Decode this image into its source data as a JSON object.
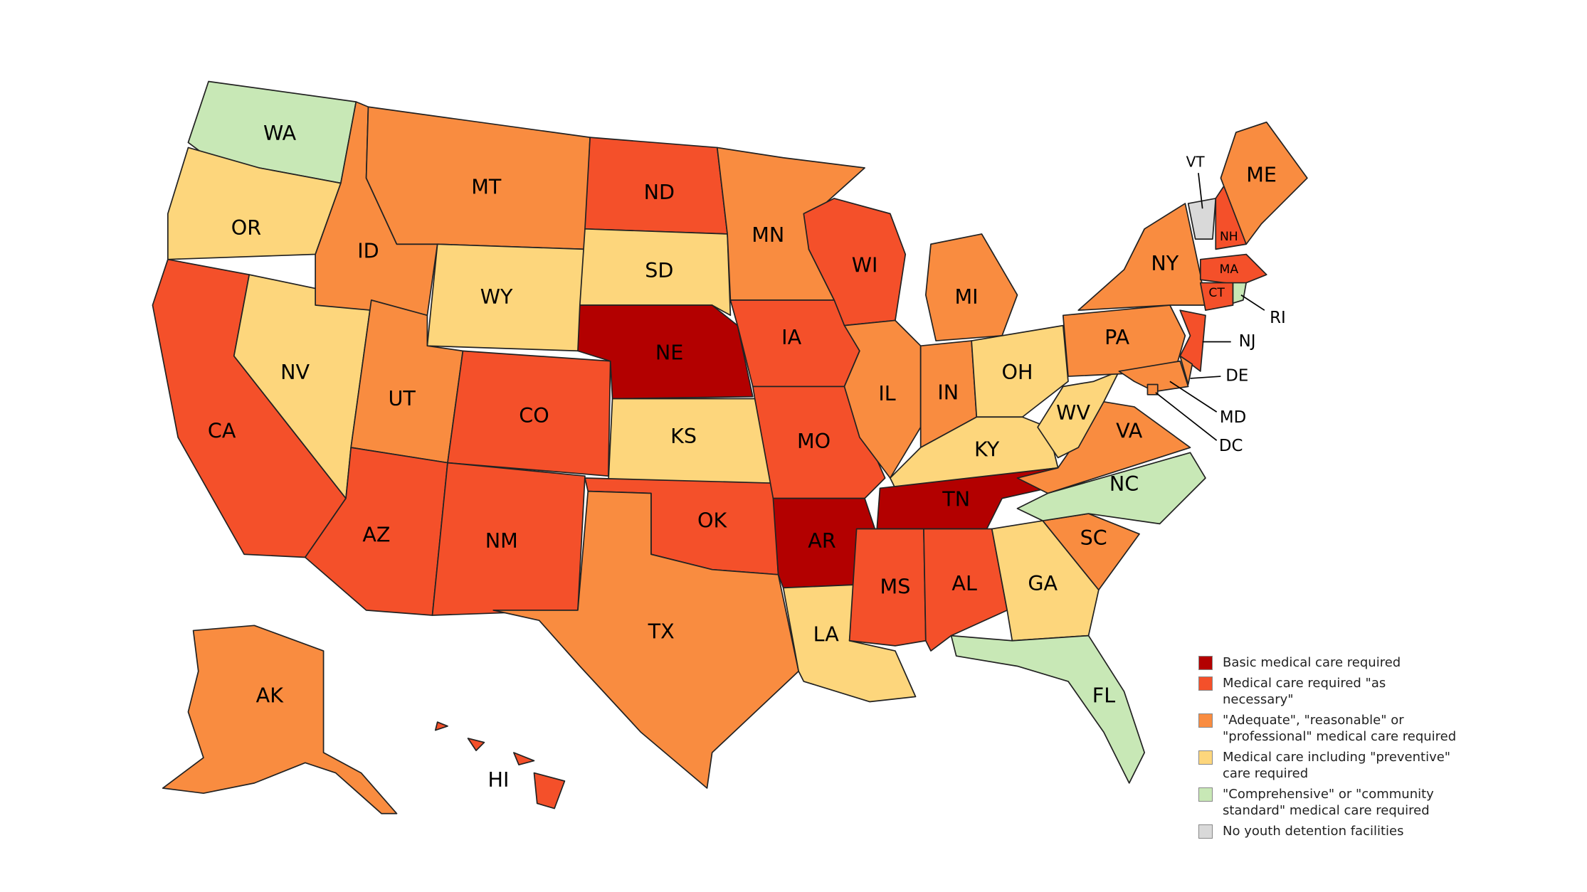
{
  "states": [
    {
      "label": "WA",
      "color": "#c8e8b6"
    },
    {
      "label": "OR",
      "color": "#fdd67c"
    },
    {
      "label": "CA",
      "color": "#f4502a"
    },
    {
      "label": "NV",
      "color": "#fdd67c"
    },
    {
      "label": "ID",
      "color": "#f98c40"
    },
    {
      "label": "MT",
      "color": "#f98c40"
    },
    {
      "label": "WY",
      "color": "#fdd67c"
    },
    {
      "label": "UT",
      "color": "#f98c40"
    },
    {
      "label": "CO",
      "color": "#f4502a"
    },
    {
      "label": "AZ",
      "color": "#f4502a"
    },
    {
      "label": "NM",
      "color": "#f4502a"
    },
    {
      "label": "ND",
      "color": "#f4502a"
    },
    {
      "label": "SD",
      "color": "#fdd67c"
    },
    {
      "label": "NE",
      "color": "#b30000"
    },
    {
      "label": "KS",
      "color": "#fdd67c"
    },
    {
      "label": "OK",
      "color": "#f4502a"
    },
    {
      "label": "TX",
      "color": "#f98c40"
    },
    {
      "label": "MN",
      "color": "#f98c40"
    },
    {
      "label": "IA",
      "color": "#f4502a"
    },
    {
      "label": "MO",
      "color": "#f4502a"
    },
    {
      "label": "AR",
      "color": "#b30000"
    },
    {
      "label": "LA",
      "color": "#fdd67c"
    },
    {
      "label": "WI",
      "color": "#f4502a"
    },
    {
      "label": "IL",
      "color": "#f98c40"
    },
    {
      "label": "MI",
      "color": "#f98c40"
    },
    {
      "label": "IN",
      "color": "#f98c40"
    },
    {
      "label": "OH",
      "color": "#fdd67c"
    },
    {
      "label": "KY",
      "color": "#fdd67c"
    },
    {
      "label": "TN",
      "color": "#b30000"
    },
    {
      "label": "MS",
      "color": "#f4502a"
    },
    {
      "label": "AL",
      "color": "#f4502a"
    },
    {
      "label": "GA",
      "color": "#fdd67c"
    },
    {
      "label": "FL",
      "color": "#c8e8b6"
    },
    {
      "label": "SC",
      "color": "#f98c40"
    },
    {
      "label": "NC",
      "color": "#c8e8b6"
    },
    {
      "label": "VA",
      "color": "#f98c40"
    },
    {
      "label": "WV",
      "color": "#fdd67c"
    },
    {
      "label": "PA",
      "color": "#f98c40"
    },
    {
      "label": "NY",
      "color": "#f98c40"
    },
    {
      "label": "VT",
      "color": "#d9d9d9"
    },
    {
      "label": "NH",
      "color": "#f4502a"
    },
    {
      "label": "ME",
      "color": "#f98c40"
    },
    {
      "label": "MA",
      "color": "#f4502a"
    },
    {
      "label": "CT",
      "color": "#f4502a"
    },
    {
      "label": "RI",
      "color": "#c8e8b6"
    },
    {
      "label": "NJ",
      "color": "#f4502a"
    },
    {
      "label": "DE",
      "color": "#f98c40"
    },
    {
      "label": "MD",
      "color": "#f98c40"
    },
    {
      "label": "DC",
      "color": "#f98c40"
    },
    {
      "label": "AK",
      "color": "#f98c40"
    },
    {
      "label": "HI",
      "color": "#f4502a"
    }
  ],
  "legend": [
    {
      "label": "Basic medical care required",
      "color": "#b30000"
    },
    {
      "label": "Medical care required \"as necessary\"",
      "color": "#f4502a"
    },
    {
      "label": "\"Adequate\", \"reasonable\" or \"professional\" medical care required",
      "color": "#f98c40"
    },
    {
      "label": "Medical care including \"preventive\" care required",
      "color": "#fdd67c"
    },
    {
      "label": "\"Comprehensive\" or \"community standard\" medical care required",
      "color": "#c8e8b6"
    },
    {
      "label": "No youth detention facilities",
      "color": "#d9d9d9"
    }
  ]
}
